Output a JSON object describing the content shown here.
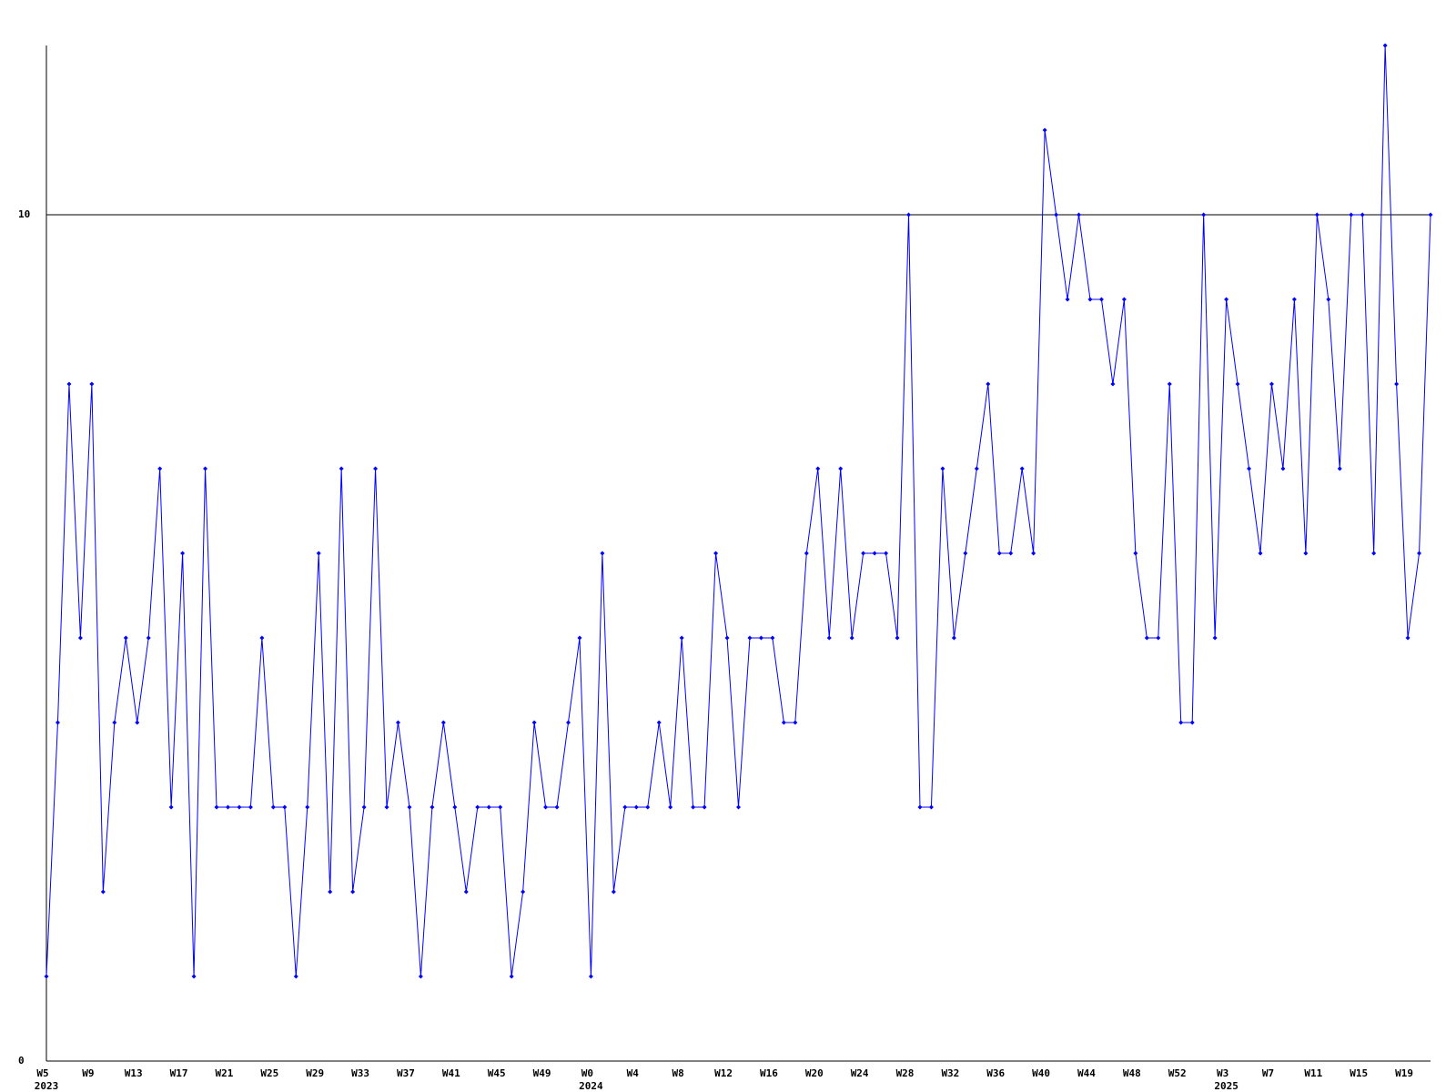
{
  "chart_data": {
    "type": "line",
    "categories": [
      "W5",
      null,
      null,
      null,
      "W9",
      null,
      null,
      null,
      "W13",
      null,
      null,
      null,
      "W17",
      null,
      null,
      null,
      "W21",
      null,
      null,
      null,
      "W25",
      null,
      null,
      null,
      "W29",
      null,
      null,
      null,
      "W33",
      null,
      null,
      null,
      "W37",
      null,
      null,
      null,
      "W41",
      null,
      null,
      null,
      "W45",
      null,
      null,
      null,
      "W49",
      null,
      null,
      null,
      "W0",
      null,
      null,
      null,
      "W4",
      null,
      null,
      null,
      "W8",
      null,
      null,
      null,
      "W12",
      null,
      null,
      null,
      "W16",
      null,
      null,
      null,
      "W20",
      null,
      null,
      null,
      "W24",
      null,
      null,
      null,
      "W28",
      null,
      null,
      null,
      "W32",
      null,
      null,
      null,
      "W36",
      null,
      null,
      null,
      "W40",
      null,
      null,
      null,
      "W44",
      null,
      null,
      null,
      "W48",
      null,
      null,
      null,
      "W52",
      null,
      null,
      null,
      "W3",
      null,
      null,
      null,
      "W7",
      null,
      null,
      null,
      "W11",
      null,
      null,
      null,
      "W15",
      null,
      null,
      null,
      "W19",
      null,
      null
    ],
    "category_years": [
      "2023",
      null,
      null,
      null,
      null,
      null,
      null,
      null,
      null,
      null,
      null,
      null,
      null,
      null,
      null,
      null,
      null,
      null,
      null,
      null,
      null,
      null,
      null,
      null,
      null,
      null,
      null,
      null,
      null,
      null,
      null,
      null,
      null,
      null,
      null,
      null,
      null,
      null,
      null,
      null,
      null,
      null,
      null,
      null,
      null,
      null,
      null,
      null,
      "2024",
      null,
      null,
      null,
      null,
      null,
      null,
      null,
      null,
      null,
      null,
      null,
      null,
      null,
      null,
      null,
      null,
      null,
      null,
      null,
      null,
      null,
      null,
      null,
      null,
      null,
      null,
      null,
      null,
      null,
      null,
      null,
      null,
      null,
      null,
      null,
      null,
      null,
      null,
      null,
      null,
      null,
      null,
      null,
      null,
      null,
      null,
      null,
      null,
      null,
      null,
      null,
      null,
      null,
      null,
      null,
      "2025",
      null,
      null,
      null,
      null,
      null,
      null,
      null,
      null,
      null,
      null,
      null,
      null,
      null,
      null,
      null,
      null,
      null,
      null
    ],
    "series": [
      {
        "color": "#0000ff",
        "values": [
          1,
          4,
          8,
          5,
          8,
          2,
          4,
          5,
          4,
          5,
          7,
          3,
          6,
          1,
          7,
          3,
          3,
          3,
          3,
          5,
          3,
          3,
          1,
          3,
          6,
          2,
          7,
          2,
          3,
          7,
          3,
          4,
          3,
          1,
          3,
          4,
          3,
          2,
          3,
          3,
          3,
          1,
          2,
          4,
          3,
          3,
          4,
          5,
          1,
          6,
          2,
          3,
          3,
          3,
          4,
          3,
          5,
          3,
          3,
          6,
          5,
          3,
          5,
          5,
          5,
          4,
          4,
          6,
          7,
          5,
          7,
          5,
          6,
          6,
          6,
          5,
          10,
          3,
          3,
          7,
          5,
          6,
          7,
          8,
          6,
          6,
          7,
          6,
          11,
          10,
          9,
          10,
          9,
          9,
          8,
          9,
          6,
          5,
          5,
          8,
          4,
          4,
          10,
          5,
          9,
          8,
          7,
          6,
          8,
          7,
          9,
          6,
          10,
          9,
          7,
          10,
          10,
          6,
          12,
          8,
          5,
          6,
          10
        ]
      }
    ],
    "ylim": [
      0,
      12
    ],
    "yticks": [
      0,
      10
    ],
    "grid": true
  }
}
